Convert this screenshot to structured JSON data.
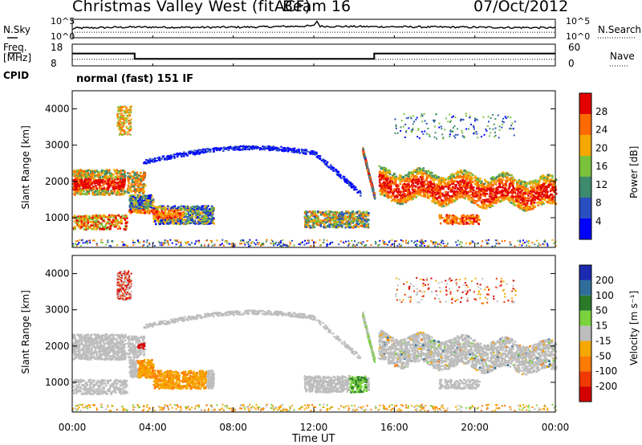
{
  "header": {
    "title": "Christmas Valley West (fitACF)",
    "beam": "Beam 16",
    "date": "07/Oct/2012"
  },
  "left_labels": {
    "nsky": "N.Sky",
    "freq_line1": "Freq.",
    "freq_line2": "[MHz]",
    "cpid": "CPID"
  },
  "right_labels": {
    "nsearch": "N.Search",
    "nave": "Nave"
  },
  "mode_text": "normal (fast) 151 IF",
  "colors": {
    "power_scale": [
      "#0000ff",
      "#2a4fbf",
      "#3e8a6e",
      "#7bc23c",
      "#f5a800",
      "#ff6a00",
      "#e30000"
    ],
    "velocity_scale": [
      "#1a2bb0",
      "#2f6e9a",
      "#2a7a2a",
      "#7ad23c",
      "#bdbdbd",
      "#f5a800",
      "#ff7a00",
      "#ee3a00",
      "#d40000"
    ],
    "gray_scatter": "#bdbdbd"
  },
  "chart_data": [
    {
      "type": "line",
      "name": "noise-panel",
      "ylabel_left": "N.Sky",
      "ylabel_right": "N.Search",
      "yticks_left": [
        "10^5",
        "10^0"
      ],
      "yticks_right": [
        "10^5",
        "10^0"
      ],
      "series": [
        {
          "name": "N.Sky",
          "x": [
            0,
            0.1,
            3,
            6,
            9,
            12,
            12.15,
            12.3,
            15,
            18,
            21,
            24
          ],
          "values": [
            2.2,
            2.6,
            2.9,
            2.8,
            2.9,
            3.2,
            4.6,
            3.1,
            3.0,
            2.9,
            2.8,
            2.7
          ]
        },
        {
          "name": "N.Search",
          "x": [
            0,
            24
          ],
          "values": [
            1.5,
            1.5
          ]
        }
      ]
    },
    {
      "type": "line",
      "name": "frequency-panel",
      "ylabel_left": "Freq. [MHz]",
      "yticks_left": [
        "18",
        "8"
      ],
      "yticks_right": [
        "60",
        "0"
      ],
      "series": [
        {
          "name": "Freq",
          "x": [
            0,
            3.1,
            3.1,
            15,
            15,
            24
          ],
          "values": [
            14,
            14,
            10.5,
            10.5,
            14,
            14
          ]
        },
        {
          "name": "Nave",
          "x": [
            0,
            24
          ],
          "values": [
            21,
            21
          ]
        }
      ]
    },
    {
      "type": "heatmap",
      "name": "power-panel",
      "ylabel": "Slant Range [km]",
      "yticks": [
        "1000",
        "2000",
        "3000",
        "4000"
      ],
      "ylim": [
        180,
        4500
      ],
      "xlim": [
        0,
        24
      ],
      "colorbar_label": "Power [dB]",
      "colorbar_ticks": [
        "4",
        "8",
        "12",
        "16",
        "20",
        "24",
        "28"
      ],
      "colorbar_range": [
        0,
        32
      ]
    },
    {
      "type": "heatmap",
      "name": "velocity-panel",
      "ylabel": "Slant Range [km]",
      "yticks": [
        "1000",
        "2000",
        "3000",
        "4000"
      ],
      "ylim": [
        180,
        4500
      ],
      "xlim": [
        0,
        24
      ],
      "colorbar_label": "Velocity [m s⁻¹]",
      "colorbar_ticks": [
        "200",
        "100",
        "50",
        "15",
        "-15",
        "-50",
        "-100",
        "-200"
      ]
    }
  ],
  "xaxis": {
    "ticks": [
      "00:00",
      "04:00",
      "08:00",
      "12:00",
      "16:00",
      "20:00",
      "00:00"
    ],
    "title": "Time UT"
  }
}
